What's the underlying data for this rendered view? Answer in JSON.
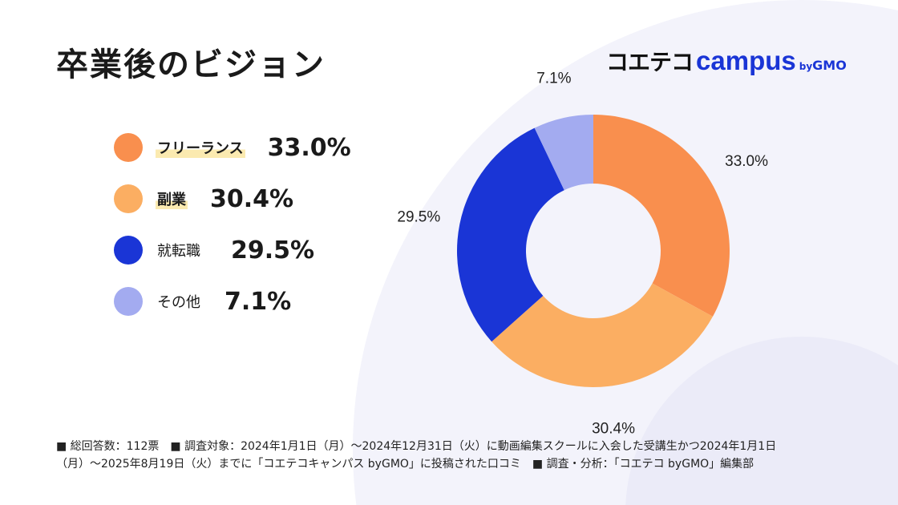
{
  "title": "卒業後のビジョン",
  "logo": {
    "jp": "コエテコ",
    "campus": "campus",
    "by": "by",
    "gmo": "GMO"
  },
  "colors": {
    "freelance": "#F98F4E",
    "side_job": "#FBAE62",
    "job_change": "#1A35D6",
    "other": "#A3ABF0"
  },
  "chart_data": {
    "type": "pie",
    "donut": true,
    "categories": [
      "フリーランス",
      "副業",
      "就転職",
      "その他"
    ],
    "values": [
      33.0,
      30.4,
      29.5,
      7.1
    ],
    "data_labels": [
      "33.0%",
      "30.4%",
      "29.5%",
      "7.1%"
    ],
    "legend": "left"
  },
  "footer": {
    "line1": "■ 総回答数：112票　■ 調査対象：2024年1月1日（月）～2024年12月31日（火）に動画編集スクールに入会した受講生かつ2024年1月1日",
    "line2": "（月）～2025年8月19日（火）までに「コエテコキャンパス byGMO」に投稿された口コミ　■ 調査・分析：「コエテコ byGMO」編集部"
  }
}
